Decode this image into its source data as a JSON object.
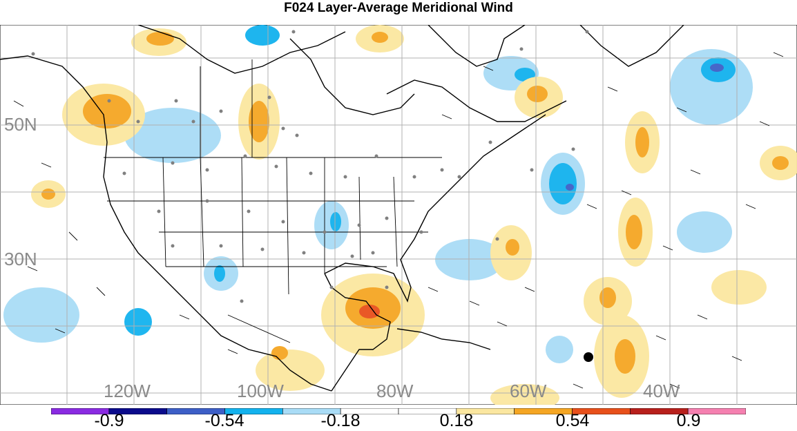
{
  "title": "F024 Layer-Average Meridional Wind",
  "map": {
    "lat_labels": [
      "50N",
      "30N"
    ],
    "lon_labels": [
      "120W",
      "100W",
      "80W",
      "60W",
      "40W"
    ],
    "marker": "black-dot"
  },
  "colorbar": {
    "colors": [
      "#8a2be2",
      "#0b0b8c",
      "#3d5fc7",
      "#13b2ee",
      "#a9dcf6",
      "#ffffff",
      "#ffffff",
      "#fbe7a0",
      "#f5a623",
      "#e8501b",
      "#b8201c",
      "#f580b0"
    ],
    "labels": [
      "-0.9",
      "-0.54",
      "-0.18",
      "0.18",
      "0.54",
      "0.9"
    ]
  }
}
